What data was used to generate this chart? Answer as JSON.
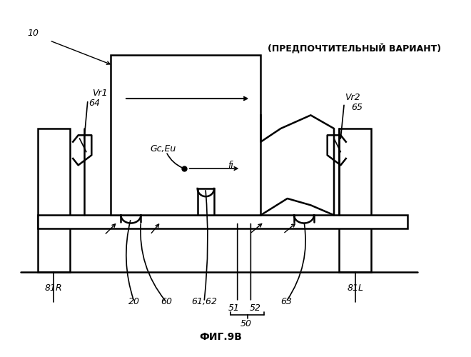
{
  "title": "ФИГ.9В",
  "header_label": "(ПРЕДПОЧТИТЕЛЬНЫЙ ВАРИАНТ)",
  "label_10": "10",
  "label_Vr1": "Vr1",
  "label_64": "64",
  "label_Vr2": "Vr2",
  "label_65": "65",
  "label_GcEu": "Gc,Eu",
  "label_fi": "fi",
  "label_81R": "81R",
  "label_20": "20",
  "label_60": "60",
  "label_6162": "61,62",
  "label_51": "51",
  "label_52": "52",
  "label_50": "50",
  "label_63": "63",
  "label_81L": "81L",
  "bg_color": "#ffffff",
  "line_color": "#000000"
}
